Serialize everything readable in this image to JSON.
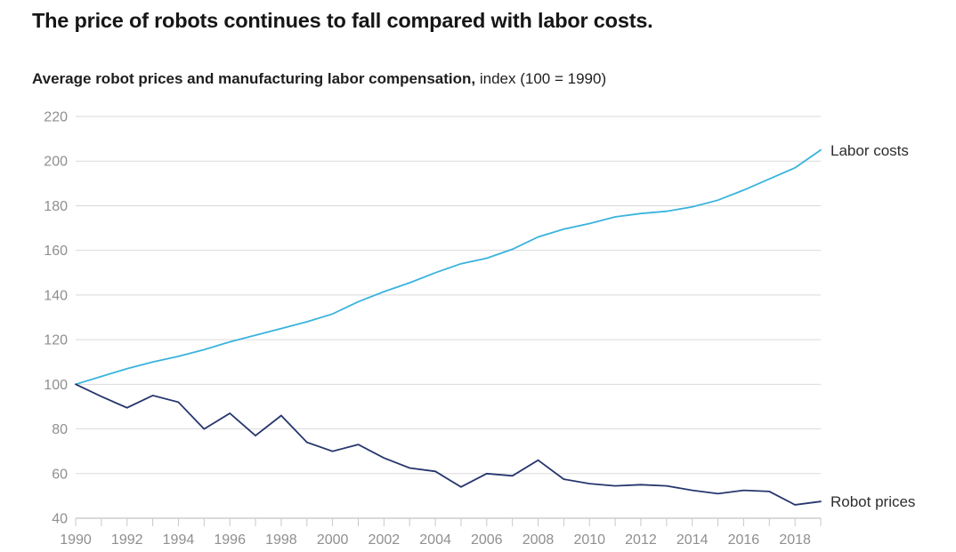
{
  "header": {
    "title": "The price of robots continues to fall compared with labor costs.",
    "subtitle_bold": "Average robot prices and manufacturing labor compensation,",
    "subtitle_regular": " index (100 = 1990)"
  },
  "chart_data": {
    "type": "line",
    "title": "Average robot prices and manufacturing labor compensation",
    "unit_note": "index (100 = 1990)",
    "x": [
      1990,
      1991,
      1992,
      1993,
      1994,
      1995,
      1996,
      1997,
      1998,
      1999,
      2000,
      2001,
      2002,
      2003,
      2004,
      2005,
      2006,
      2007,
      2008,
      2009,
      2010,
      2011,
      2012,
      2013,
      2014,
      2015,
      2016,
      2017,
      2018,
      2019
    ],
    "series": [
      {
        "name": "Labor costs",
        "color": "#3ab3dd",
        "values": [
          100,
          103.5,
          107,
          110,
          112.5,
          115.5,
          119,
          122,
          125,
          128,
          131.5,
          137,
          141.5,
          145.5,
          150,
          154,
          156.5,
          160.5,
          166,
          169.5,
          172,
          175,
          176.5,
          177.5,
          179.5,
          182.5,
          187,
          192,
          197,
          205
        ]
      },
      {
        "name": "Robot prices",
        "color": "#26366d",
        "values": [
          100,
          94.5,
          89.5,
          95,
          92,
          80,
          87,
          77,
          86,
          74,
          70,
          73,
          67,
          62.5,
          61,
          54,
          60,
          59,
          66,
          57.5,
          55.5,
          54.5,
          55,
          54.5,
          52.5,
          51,
          52.5,
          52,
          46,
          47.5
        ]
      }
    ],
    "ylim": [
      40,
      220
    ],
    "y_ticks": [
      220,
      200,
      180,
      160,
      140,
      120,
      100,
      80,
      60,
      40
    ],
    "x_tick_labels": [
      1990,
      1992,
      1994,
      1996,
      1998,
      2000,
      2002,
      2004,
      2006,
      2008,
      2010,
      2012,
      2014,
      2016,
      2018
    ],
    "grid": "horizontal",
    "legend_position": "line-end-labels-right"
  },
  "colors": {
    "grid": "#dadada",
    "axis_line": "#b3b3b3",
    "tick_mark": "#c9c9c9",
    "tick_label": "#8f8f8f",
    "series_label": "#2d2d2d"
  }
}
